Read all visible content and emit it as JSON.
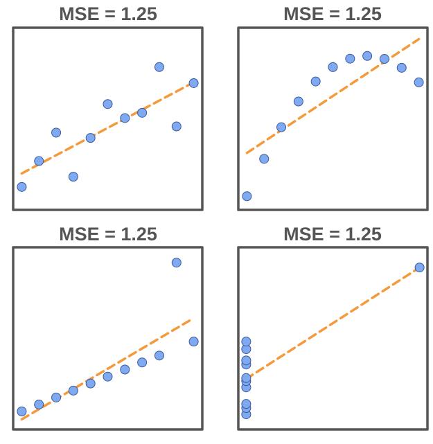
{
  "style": {
    "frame_color": "#555555",
    "point_fill": "#7fa9f0",
    "point_stroke": "#3b5a9a",
    "line_color": "#f59a3a",
    "title_color": "#555555"
  },
  "chart_data": [
    {
      "type": "scatter",
      "title": "MSE = 1.25",
      "xlim": [
        3.5,
        14.5
      ],
      "ylim": [
        3,
        13
      ],
      "grid": false,
      "points": {
        "x": [
          4,
          5,
          6,
          7,
          8,
          9,
          10,
          11,
          12,
          13,
          14
        ],
        "y": [
          4.26,
          5.68,
          7.24,
          4.82,
          6.95,
          8.81,
          8.04,
          8.33,
          10.84,
          7.58,
          9.96
        ]
      },
      "fit_line": {
        "x": [
          4,
          14
        ],
        "y": [
          5.0,
          10.0
        ]
      }
    },
    {
      "type": "scatter",
      "title": "MSE = 1.25",
      "xlim": [
        3.5,
        14.5
      ],
      "ylim": [
        2.5,
        10.5
      ],
      "grid": false,
      "points": {
        "x": [
          4,
          5,
          6,
          7,
          8,
          9,
          10,
          11,
          12,
          13,
          14
        ],
        "y": [
          3.1,
          4.74,
          6.13,
          7.26,
          8.14,
          8.77,
          9.14,
          9.26,
          9.13,
          8.74,
          8.1
        ]
      },
      "fit_line": {
        "x": [
          4,
          14
        ],
        "y": [
          5.0,
          10.0
        ]
      }
    },
    {
      "type": "scatter",
      "title": "MSE = 1.25",
      "xlim": [
        3.5,
        14.5
      ],
      "ylim": [
        4.5,
        13.5
      ],
      "grid": false,
      "points": {
        "x": [
          4,
          5,
          6,
          7,
          8,
          9,
          10,
          11,
          12,
          13,
          14
        ],
        "y": [
          5.39,
          5.73,
          6.08,
          6.42,
          6.77,
          7.11,
          7.46,
          7.81,
          8.15,
          12.74,
          8.84
        ]
      },
      "fit_line": {
        "x": [
          4,
          14
        ],
        "y": [
          5.0,
          10.0
        ]
      }
    },
    {
      "type": "scatter",
      "title": "MSE = 1.25",
      "xlim": [
        7.5,
        19.5
      ],
      "ylim": [
        4.5,
        13.5
      ],
      "grid": false,
      "points": {
        "x": [
          8,
          8,
          8,
          8,
          8,
          8,
          8,
          8,
          8,
          8,
          19
        ],
        "y": [
          5.25,
          5.56,
          5.76,
          6.58,
          6.89,
          7.04,
          7.71,
          7.91,
          8.47,
          8.84,
          12.5
        ]
      },
      "fit_line": {
        "x": [
          8,
          19
        ],
        "y": [
          7.0,
          12.5
        ]
      }
    }
  ]
}
